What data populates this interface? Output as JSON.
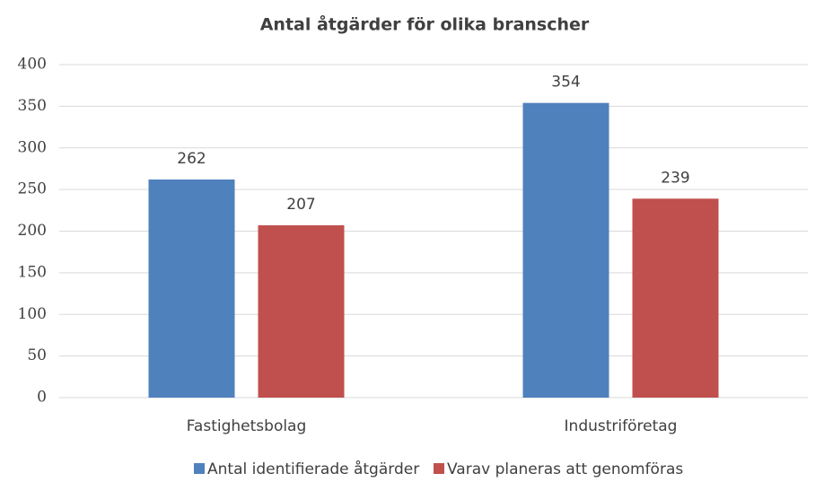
{
  "chart_data": {
    "type": "bar",
    "title": "Antal åtgärder för olika branscher",
    "categories": [
      "Fastighetsbolag",
      "Industriföretag"
    ],
    "series": [
      {
        "name": "Antal identifierade åtgärder",
        "color": "#4f81bd",
        "values": [
          262,
          354
        ]
      },
      {
        "name": "Varav planeras att genomföras",
        "color": "#c0504d",
        "values": [
          207,
          239
        ]
      }
    ],
    "ylim": [
      0,
      400
    ],
    "yticks": [
      0,
      50,
      100,
      150,
      200,
      250,
      300,
      350,
      400
    ],
    "grid": true,
    "legend": "bottom"
  }
}
